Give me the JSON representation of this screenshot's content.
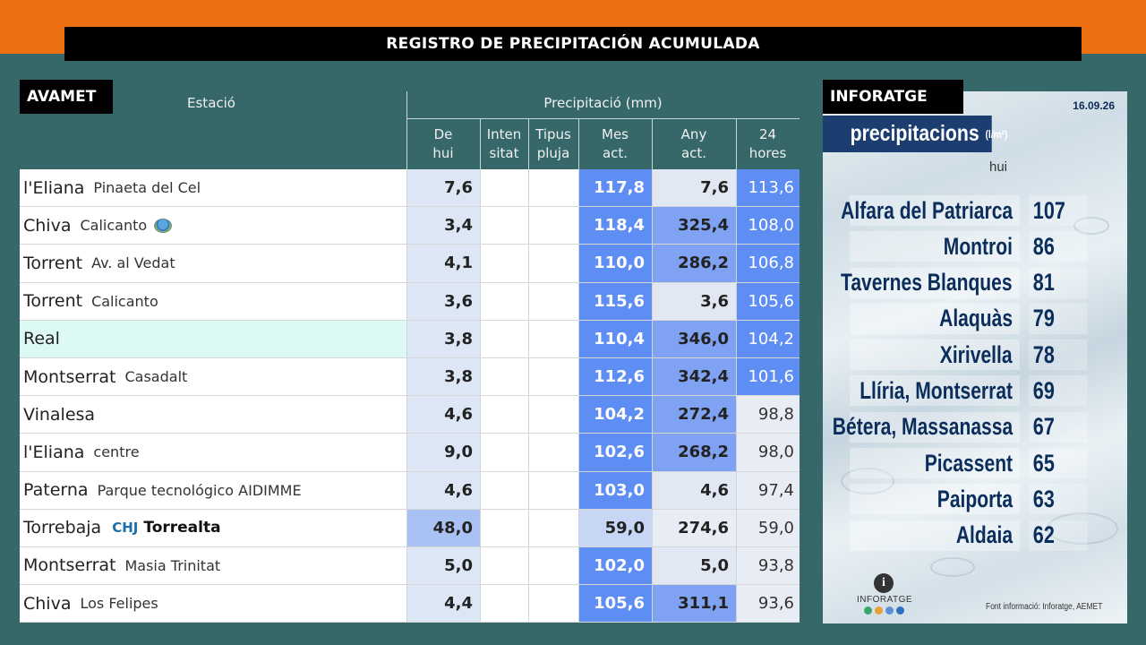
{
  "header": {
    "title": "REGISTRO DE PRECIPITACIÓN ACUMULADA"
  },
  "avamet": {
    "tag": "AVAMET",
    "station_header": "Estació",
    "precip_header": "Precipitació (mm)",
    "columns": [
      {
        "l1": "De",
        "l2": "hui"
      },
      {
        "l1": "Inten",
        "l2": "sitat"
      },
      {
        "l1": "Tipus",
        "l2": "pluja"
      },
      {
        "l1": "Mes",
        "l2": "act."
      },
      {
        "l1": "Any",
        "l2": "act."
      },
      {
        "l1": "24",
        "l2": "hores"
      }
    ],
    "rows": [
      {
        "name": "l'Eliana",
        "sub": "Pinaeta del Cel",
        "de_hui": "7,6",
        "mes": "117,8",
        "any": "7,6",
        "h24": "113,6",
        "any_light": true,
        "h24_light": false
      },
      {
        "name": "Chiva",
        "sub": "Calicanto",
        "de_hui": "3,4",
        "mes": "118,4",
        "any": "325,4",
        "h24": "108,0",
        "any_light": false,
        "h24_light": false
      },
      {
        "name": "Torrent",
        "sub": "Av. al Vedat",
        "de_hui": "4,1",
        "mes": "110,0",
        "any": "286,2",
        "h24": "106,8",
        "any_light": false,
        "h24_light": false
      },
      {
        "name": "Torrent",
        "sub": "Calicanto",
        "de_hui": "3,6",
        "mes": "115,6",
        "any": "3,6",
        "h24": "105,6",
        "any_light": true,
        "h24_light": false
      },
      {
        "name": "Real",
        "sub": "",
        "de_hui": "3,8",
        "mes": "110,4",
        "any": "346,0",
        "h24": "104,2",
        "any_light": false,
        "h24_light": false
      },
      {
        "name": "Montserrat",
        "sub": "Casadalt",
        "de_hui": "3,8",
        "mes": "112,6",
        "any": "342,4",
        "h24": "101,6",
        "any_light": false,
        "h24_light": false
      },
      {
        "name": "Vinalesa",
        "sub": "",
        "de_hui": "4,6",
        "mes": "104,2",
        "any": "272,4",
        "h24": "98,8",
        "any_light": false,
        "h24_light": true
      },
      {
        "name": "l'Eliana",
        "sub": "centre",
        "de_hui": "9,0",
        "mes": "102,6",
        "any": "268,2",
        "h24": "98,0",
        "any_light": false,
        "h24_light": true
      },
      {
        "name": "Paterna",
        "sub": "Parque tecnológico AIDIMME",
        "de_hui": "4,6",
        "mes": "103,0",
        "any": "4,6",
        "h24": "97,4",
        "any_light": true,
        "h24_light": true
      },
      {
        "name": "Torrebaja",
        "sub": "CHJ",
        "sub2": "Torrealta",
        "de_hui": "48,0",
        "mes": "59,0",
        "any": "274,6",
        "h24": "59,0",
        "any_light": true,
        "h24_light": true
      },
      {
        "name": "Montserrat",
        "sub": "Masia Trinitat",
        "de_hui": "5,0",
        "mes": "102,0",
        "any": "5,0",
        "h24": "93,8",
        "any_light": true,
        "h24_light": true
      },
      {
        "name": "Chiva",
        "sub": "Los Felipes",
        "de_hui": "4,4",
        "mes": "105,6",
        "any": "311,1",
        "h24": "93,6",
        "any_light": false,
        "h24_light": true
      }
    ]
  },
  "inforatge": {
    "tag": "INFORATGE",
    "date": "16.09.26",
    "title": "precipitacions",
    "unit": "(l/m²)",
    "hui": "hui",
    "rows": [
      {
        "name": "Alfara del Patriarca",
        "value": "107"
      },
      {
        "name": "Montroi",
        "value": "86"
      },
      {
        "name": "Tavernes Blanques",
        "value": "81"
      },
      {
        "name": "Alaquàs",
        "value": "79"
      },
      {
        "name": "Xirivella",
        "value": "78"
      },
      {
        "name": "Llíria, Montserrat",
        "value": "69"
      },
      {
        "name": "Bétera, Massanassa",
        "value": "67"
      },
      {
        "name": "Picassent",
        "value": "65"
      },
      {
        "name": "Paiporta",
        "value": "63"
      },
      {
        "name": "Aldaia",
        "value": "62"
      }
    ],
    "logo_text": "INFORATGE",
    "source": "Font informació: Inforatge, AEMET"
  }
}
